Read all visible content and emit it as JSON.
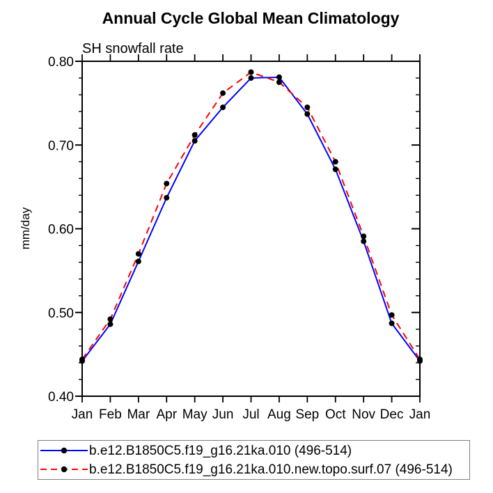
{
  "title": "Annual Cycle Global Mean Climatology",
  "subtitle": "SH snowfall rate",
  "ylabel": "mm/day",
  "chart_data": {
    "type": "line",
    "x_categories": [
      "Jan",
      "Feb",
      "Mar",
      "Apr",
      "May",
      "Jun",
      "Jul",
      "Aug",
      "Sep",
      "Oct",
      "Nov",
      "Dec",
      "Jan"
    ],
    "ylim": [
      0.4,
      0.8
    ],
    "ytick_major_step": 0.1,
    "ytick_minor_step": 0.02,
    "grid": false,
    "legend_position": "bottom-left",
    "marker": "black-dot",
    "series": [
      {
        "name": "b.e12.B1850C5.f19_g16.21ka.010 (496-514)",
        "color": "#0000ff",
        "style": "solid",
        "values": [
          0.442,
          0.486,
          0.561,
          0.637,
          0.705,
          0.745,
          0.78,
          0.781,
          0.737,
          0.671,
          0.585,
          0.487,
          0.442
        ]
      },
      {
        "name": "b.e12.B1850C5.f19_g16.21ka.010.new.topo.surf.07 (496-514)",
        "color": "#ff0000",
        "style": "dashed",
        "values": [
          0.444,
          0.492,
          0.57,
          0.654,
          0.712,
          0.762,
          0.787,
          0.775,
          0.745,
          0.68,
          0.591,
          0.497,
          0.444
        ]
      }
    ]
  },
  "colors": {
    "axis": "#000000",
    "marker": "#000000",
    "legend_border": "#7d7d7d",
    "background": "#ffffff"
  }
}
